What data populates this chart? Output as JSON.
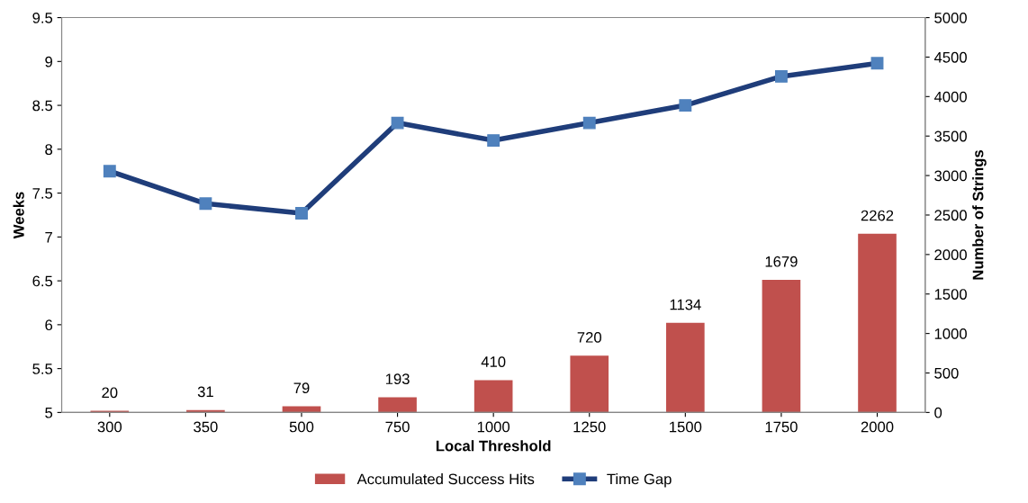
{
  "chart_data": {
    "type": "line",
    "xlabel": "Local Threshold",
    "ylabel": "Weeks",
    "y2label": "Number of Strings",
    "categories": [
      "300",
      "350",
      "500",
      "750",
      "1000",
      "1250",
      "1500",
      "1750",
      "2000"
    ],
    "series": [
      {
        "name": "Accumulated Success Hits",
        "type": "bar",
        "axis": "y2",
        "color": "#c0504d",
        "values": [
          20,
          31,
          79,
          193,
          410,
          720,
          1134,
          1679,
          2262
        ],
        "data_labels": true
      },
      {
        "name": "Time Gap",
        "color": "#1f3d7a",
        "marker": "square",
        "values": [
          7.75,
          7.38,
          7.27,
          8.3,
          8.1,
          8.3,
          8.5,
          8.83,
          8.98
        ]
      }
    ],
    "ylim": [
      5,
      9.5
    ],
    "yticks": [
      5,
      5.5,
      6,
      6.5,
      7,
      7.5,
      8,
      8.5,
      9,
      9.5
    ],
    "y2lim": [
      0,
      5000
    ],
    "y2ticks": [
      0,
      500,
      1000,
      1500,
      2000,
      2500,
      3000,
      3500,
      4000,
      4500,
      5000
    ],
    "grid": false,
    "legend": "bottom"
  }
}
